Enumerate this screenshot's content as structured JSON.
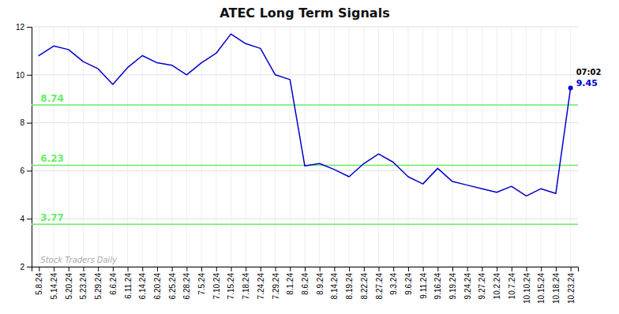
{
  "chart_data": {
    "type": "line",
    "title": "ATEC Long Term Signals",
    "categories": [
      "5.8.24",
      "5.14.24",
      "5.20.24",
      "5.23.24",
      "5.29.24",
      "6.6.24",
      "6.11.24",
      "6.14.24",
      "6.20.24",
      "6.25.24",
      "6.28.24",
      "7.5.24",
      "7.10.24",
      "7.15.24",
      "7.18.24",
      "7.24.24",
      "7.29.24",
      "8.1.24",
      "8.6.24",
      "8.9.24",
      "8.14.24",
      "8.19.24",
      "8.22.24",
      "8.27.24",
      "9.3.24",
      "9.6.24",
      "9.11.24",
      "9.16.24",
      "9.19.24",
      "9.24.24",
      "9.27.24",
      "10.2.24",
      "10.7.24",
      "10.10.24",
      "10.15.24",
      "10.18.24",
      "10.23.24"
    ],
    "values": [
      10.8,
      11.2,
      11.05,
      10.55,
      10.25,
      9.6,
      10.3,
      10.8,
      10.5,
      10.4,
      10.0,
      10.5,
      10.9,
      11.7,
      11.3,
      11.1,
      10.0,
      9.8,
      6.2,
      6.3,
      6.05,
      5.75,
      6.3,
      6.7,
      6.35,
      5.75,
      5.45,
      6.1,
      5.55,
      5.4,
      5.25,
      5.1,
      5.35,
      4.95,
      5.25,
      5.05,
      9.45
    ],
    "color": "#0000cc",
    "reference_lines": [
      {
        "value": 8.74,
        "label": "8.74",
        "color": "#66ee66"
      },
      {
        "value": 6.23,
        "label": "6.23",
        "color": "#66ee66"
      },
      {
        "value": 3.77,
        "label": "3.77",
        "color": "#66ee66"
      }
    ],
    "last_point_labels": [
      {
        "text": "07:02",
        "color": "#000000"
      },
      {
        "text": "9.45",
        "color": "#0000cc"
      }
    ],
    "watermark": {
      "text": "Stock Traders Daily",
      "color": "#aaaaaa"
    },
    "ylim": [
      2,
      12
    ],
    "yticks": [
      2,
      4,
      6,
      8,
      10,
      12
    ],
    "grid": true
  }
}
